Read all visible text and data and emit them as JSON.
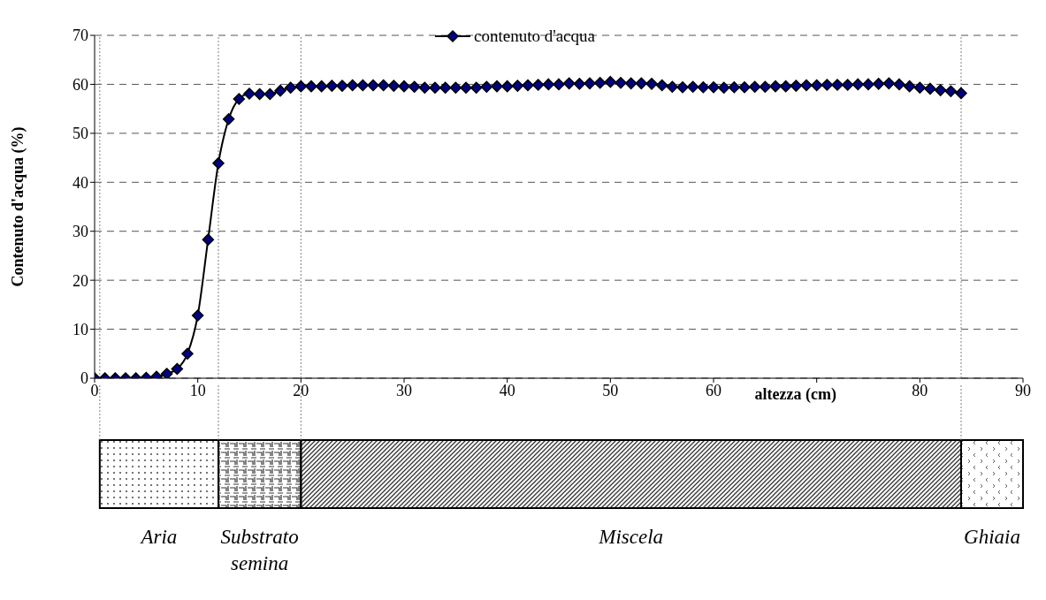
{
  "chart_data": {
    "type": "line",
    "xlabel": "altezza (cm)",
    "ylabel": "Contenuto d'acqua (%)",
    "x": [
      0,
      1,
      2,
      3,
      4,
      5,
      6,
      7,
      8,
      9,
      10,
      11,
      12,
      13,
      14,
      15,
      16,
      17,
      18,
      19,
      20,
      21,
      22,
      23,
      24,
      25,
      26,
      27,
      28,
      29,
      30,
      31,
      32,
      33,
      34,
      35,
      36,
      37,
      38,
      39,
      40,
      41,
      42,
      43,
      44,
      45,
      46,
      47,
      48,
      49,
      50,
      51,
      52,
      53,
      54,
      55,
      56,
      57,
      58,
      59,
      60,
      61,
      62,
      63,
      64,
      65,
      66,
      67,
      68,
      69,
      70,
      71,
      72,
      73,
      74,
      75,
      76,
      77,
      78,
      79,
      80,
      81,
      82,
      83,
      84
    ],
    "series": [
      {
        "name": "contenuto d'acqua",
        "color": "#000080",
        "values": [
          0,
          0,
          0,
          0,
          0,
          0.1,
          0.3,
          0.9,
          1.9,
          5,
          12.8,
          28.3,
          43.9,
          52.9,
          57,
          58.1,
          58,
          58,
          58.7,
          59.3,
          59.6,
          59.6,
          59.6,
          59.7,
          59.7,
          59.8,
          59.8,
          59.8,
          59.8,
          59.7,
          59.6,
          59.5,
          59.3,
          59.3,
          59.3,
          59.3,
          59.3,
          59.3,
          59.5,
          59.6,
          59.6,
          59.7,
          59.8,
          59.9,
          60,
          60,
          60.2,
          60.1,
          60.2,
          60.3,
          60.5,
          60.3,
          60.2,
          60.2,
          60.1,
          59.8,
          59.5,
          59.4,
          59.5,
          59.4,
          59.4,
          59.3,
          59.4,
          59.4,
          59.5,
          59.5,
          59.6,
          59.6,
          59.7,
          59.8,
          59.8,
          59.9,
          59.9,
          59.9,
          60,
          60,
          60.1,
          60.2,
          60,
          59.6,
          59.3,
          59.1,
          58.8,
          58.6,
          58.2
        ]
      }
    ],
    "xlim": [
      0,
      90
    ],
    "xticks": [
      0,
      10,
      20,
      30,
      40,
      50,
      60,
      {
        "value": 70,
        "label": null
      },
      80,
      90
    ],
    "ylim": [
      0,
      70
    ],
    "yticks": [
      0,
      10,
      20,
      30,
      40,
      50,
      60,
      70
    ],
    "grid": "y",
    "legend": "top",
    "marker": "diamond",
    "line_style": "solid",
    "ref_lines": [
      {
        "axis": "x",
        "value": 0.5,
        "color": "#808080",
        "line_style": "dotted"
      },
      {
        "axis": "x",
        "value": 12,
        "color": "#808080",
        "line_style": "dotted"
      },
      {
        "axis": "x",
        "value": 20,
        "color": "#808080",
        "line_style": "dotted"
      },
      {
        "axis": "x",
        "value": 84,
        "color": "#808080",
        "line_style": "dotted"
      }
    ],
    "annotations": [
      "Aria",
      "Substrato semina",
      "Miscela",
      "Ghiaia"
    ]
  }
}
